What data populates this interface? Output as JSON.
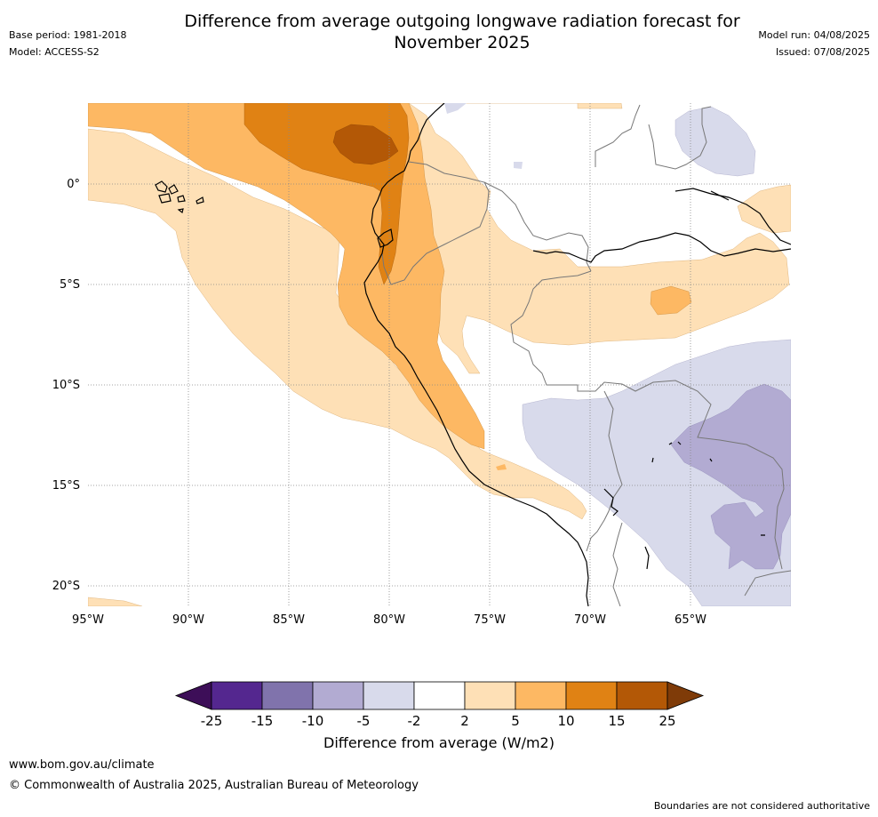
{
  "title_line1": "Difference from average outgoing longwave radiation forecast for",
  "title_line2": "November 2025",
  "base_period": "Base period: 1981-2018",
  "model": "Model: ACCESS-S2",
  "model_run": "Model run: 04/08/2025",
  "issued": "Issued: 07/08/2025",
  "lat_labels": [
    "0°",
    "5°S",
    "10°S",
    "15°S",
    "20°S"
  ],
  "lon_labels": [
    "95°W",
    "90°W",
    "85°W",
    "80°W",
    "75°W",
    "70°W",
    "65°W"
  ],
  "colorbar": {
    "ticks": [
      "-25",
      "-15",
      "-10",
      "-5",
      "-2",
      "2",
      "5",
      "10",
      "15",
      "25"
    ],
    "colors": [
      "#3d0e58",
      "#54278f",
      "#8073ac",
      "#b2abd2",
      "#d8daeb",
      "#ffffff",
      "#fee0b6",
      "#fdb863",
      "#e08214",
      "#b35806",
      "#7f3b08"
    ],
    "title": "Difference from average (W/m2)"
  },
  "website": "www.bom.gov.au/climate",
  "copyright": "© Commonwealth of Australia 2025, Australian Bureau of Meteorology",
  "disclaimer": "Boundaries are not considered authoritative"
}
